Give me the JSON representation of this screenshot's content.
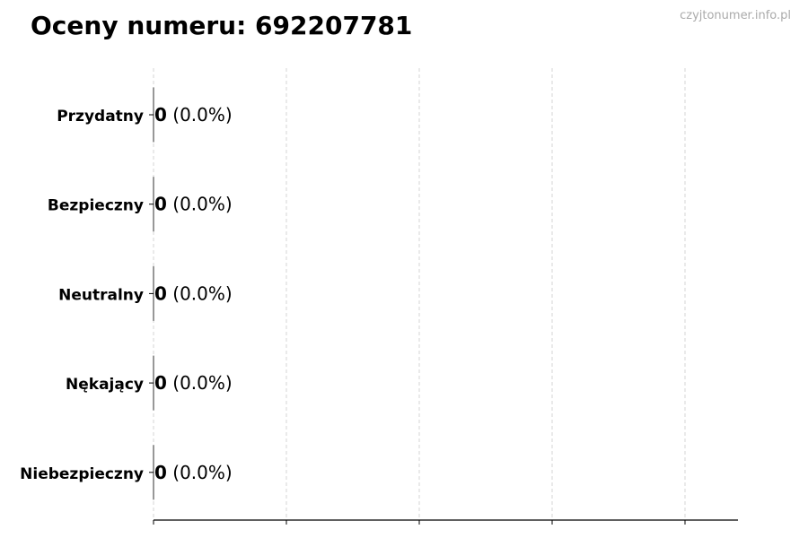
{
  "chart_data": {
    "type": "bar",
    "orientation": "horizontal",
    "title": "Oceny numeru: 692207781",
    "categories": [
      "Przydatny",
      "Bezpieczny",
      "Neutralny",
      "Nękający",
      "Niebezpieczny"
    ],
    "values": [
      0,
      0,
      0,
      0,
      0
    ],
    "data_labels": [
      {
        "count": "0",
        "percent": "(0.0%)"
      },
      {
        "count": "0",
        "percent": "(0.0%)"
      },
      {
        "count": "0",
        "percent": "(0.0%)"
      },
      {
        "count": "0",
        "percent": "(0.0%)"
      },
      {
        "count": "0",
        "percent": "(0.0%)"
      }
    ],
    "xlabel": "",
    "ylabel": "",
    "x_tick_labels_shown": false,
    "grid": "vertical dashed",
    "colors": {
      "bar_edge": "#333333",
      "grid": "#cccccc",
      "axis": "#000000"
    }
  },
  "watermark": "czyjtonumer.info.pl"
}
